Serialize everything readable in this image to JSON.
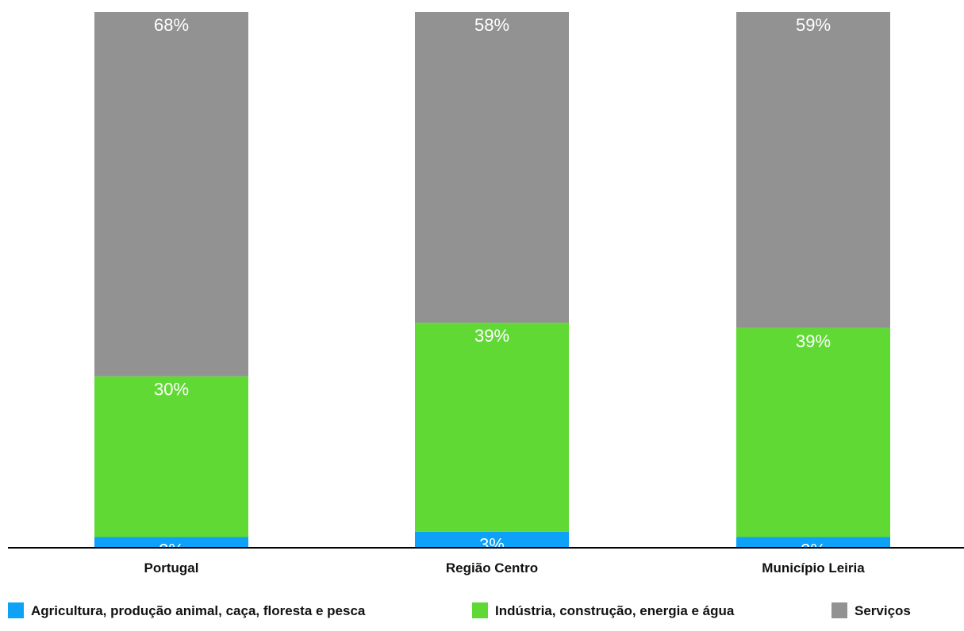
{
  "chart_data": {
    "type": "bar",
    "stacked": true,
    "categories": [
      "Portugal",
      "Região Centro",
      "Município Leiria"
    ],
    "series": [
      {
        "name": "Agricultura, produção animal, caça, floresta e pesca",
        "color": "#0da1f8",
        "values": [
          2,
          3,
          2
        ],
        "labels": [
          "2%",
          "3%",
          "2%"
        ]
      },
      {
        "name": "Indústria, construção, energia e água",
        "color": "#60d935",
        "values": [
          30,
          39,
          39
        ],
        "labels": [
          "30%",
          "39%",
          "39%"
        ]
      },
      {
        "name": "Serviços",
        "color": "#929292",
        "values": [
          68,
          58,
          59
        ],
        "labels": [
          "68%",
          "58%",
          "59%"
        ]
      }
    ],
    "ylim": [
      0,
      100
    ],
    "grid": false,
    "legend_position": "bottom"
  }
}
